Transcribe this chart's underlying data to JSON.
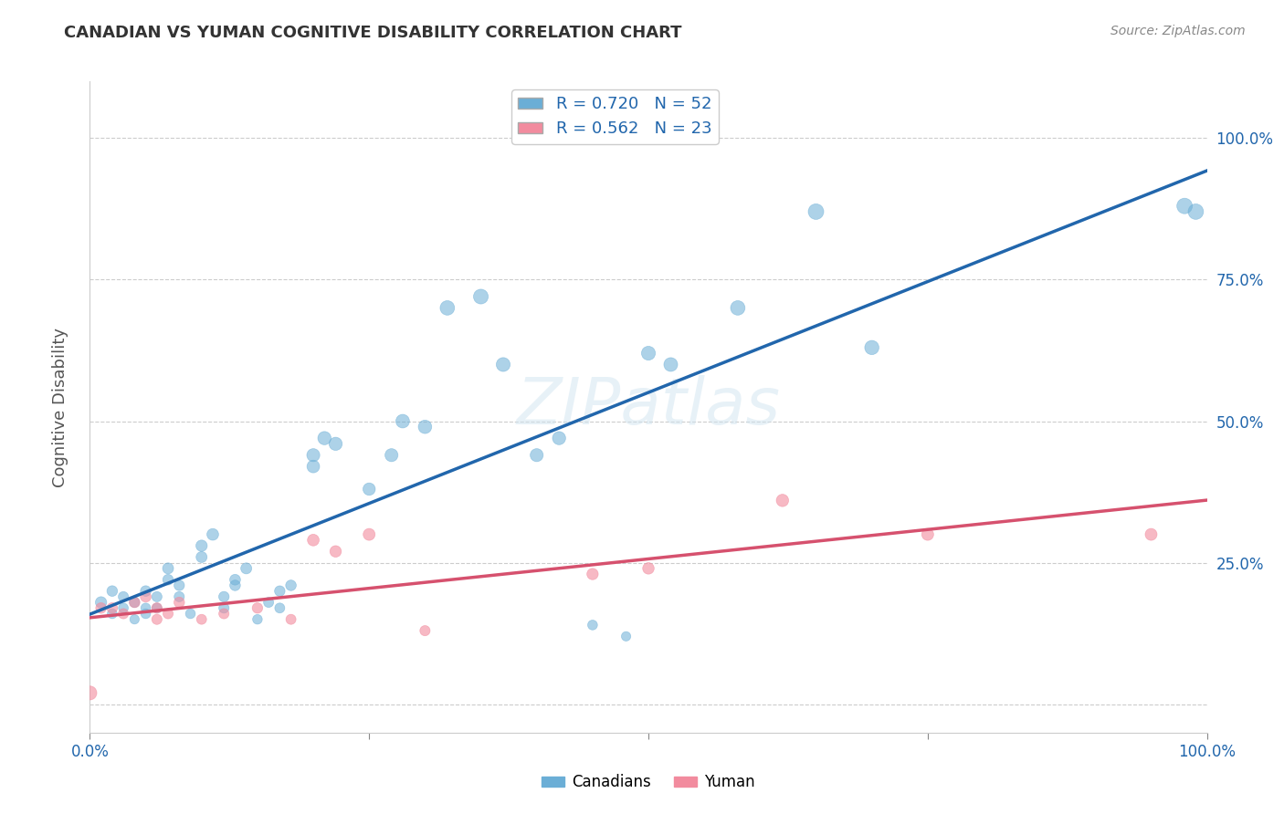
{
  "title": "CANADIAN VS YUMAN COGNITIVE DISABILITY CORRELATION CHART",
  "source": "Source: ZipAtlas.com",
  "ylabel": "Cognitive Disability",
  "xlim": [
    0.0,
    1.0
  ],
  "ylim": [
    -0.05,
    1.1
  ],
  "xticks": [
    0.0,
    0.25,
    0.5,
    0.75,
    1.0
  ],
  "xticklabels": [
    "0.0%",
    "",
    "",
    "",
    "100.0%"
  ],
  "ytick_positions": [
    0.0,
    0.25,
    0.5,
    0.75,
    1.0
  ],
  "ytick_labels_right": [
    "",
    "25.0%",
    "50.0%",
    "75.0%",
    "100.0%"
  ],
  "canadians_R": 0.72,
  "canadians_N": 52,
  "yuman_R": 0.562,
  "yuman_N": 23,
  "canadians_color": "#6baed6",
  "yuman_color": "#f28b9e",
  "canadians_line_color": "#2166ac",
  "yuman_line_color": "#d6516e",
  "canadians_x": [
    0.01,
    0.02,
    0.02,
    0.03,
    0.03,
    0.04,
    0.04,
    0.05,
    0.05,
    0.05,
    0.06,
    0.06,
    0.07,
    0.07,
    0.08,
    0.08,
    0.09,
    0.1,
    0.1,
    0.11,
    0.12,
    0.12,
    0.13,
    0.13,
    0.14,
    0.15,
    0.16,
    0.17,
    0.17,
    0.18,
    0.2,
    0.2,
    0.21,
    0.22,
    0.25,
    0.27,
    0.28,
    0.3,
    0.32,
    0.35,
    0.37,
    0.4,
    0.42,
    0.45,
    0.48,
    0.5,
    0.52,
    0.58,
    0.65,
    0.7,
    0.98,
    0.99
  ],
  "canadians_y": [
    0.18,
    0.16,
    0.2,
    0.17,
    0.19,
    0.15,
    0.18,
    0.16,
    0.17,
    0.2,
    0.17,
    0.19,
    0.22,
    0.24,
    0.19,
    0.21,
    0.16,
    0.26,
    0.28,
    0.3,
    0.17,
    0.19,
    0.22,
    0.21,
    0.24,
    0.15,
    0.18,
    0.17,
    0.2,
    0.21,
    0.42,
    0.44,
    0.47,
    0.46,
    0.38,
    0.44,
    0.5,
    0.49,
    0.7,
    0.72,
    0.6,
    0.44,
    0.47,
    0.14,
    0.12,
    0.62,
    0.6,
    0.7,
    0.87,
    0.63,
    0.88,
    0.87
  ],
  "yuman_x": [
    0.0,
    0.01,
    0.02,
    0.03,
    0.04,
    0.05,
    0.06,
    0.06,
    0.07,
    0.08,
    0.1,
    0.12,
    0.15,
    0.18,
    0.2,
    0.22,
    0.25,
    0.3,
    0.45,
    0.5,
    0.62,
    0.75,
    0.95
  ],
  "yuman_y": [
    0.02,
    0.17,
    0.17,
    0.16,
    0.18,
    0.19,
    0.15,
    0.17,
    0.16,
    0.18,
    0.15,
    0.16,
    0.17,
    0.15,
    0.29,
    0.27,
    0.3,
    0.13,
    0.23,
    0.24,
    0.36,
    0.3,
    0.3
  ],
  "canadians_sizes": [
    80,
    60,
    70,
    60,
    65,
    55,
    65,
    60,
    60,
    70,
    60,
    65,
    70,
    75,
    65,
    68,
    60,
    75,
    80,
    85,
    65,
    68,
    72,
    70,
    75,
    58,
    63,
    62,
    68,
    70,
    100,
    105,
    110,
    108,
    95,
    105,
    115,
    112,
    130,
    135,
    120,
    105,
    108,
    60,
    55,
    120,
    118,
    130,
    150,
    125,
    150,
    148
  ],
  "yuman_sizes": [
    120,
    70,
    70,
    65,
    70,
    72,
    65,
    68,
    65,
    70,
    62,
    65,
    68,
    63,
    85,
    82,
    88,
    65,
    80,
    82,
    95,
    88,
    88
  ],
  "watermark": "ZIPatlas",
  "background_color": "#ffffff",
  "grid_color": "#cccccc",
  "tick_label_color": "#2166ac",
  "legend_text_color": "#2166ac",
  "ylabel_color": "#555555",
  "title_color": "#333333",
  "source_color": "#888888"
}
